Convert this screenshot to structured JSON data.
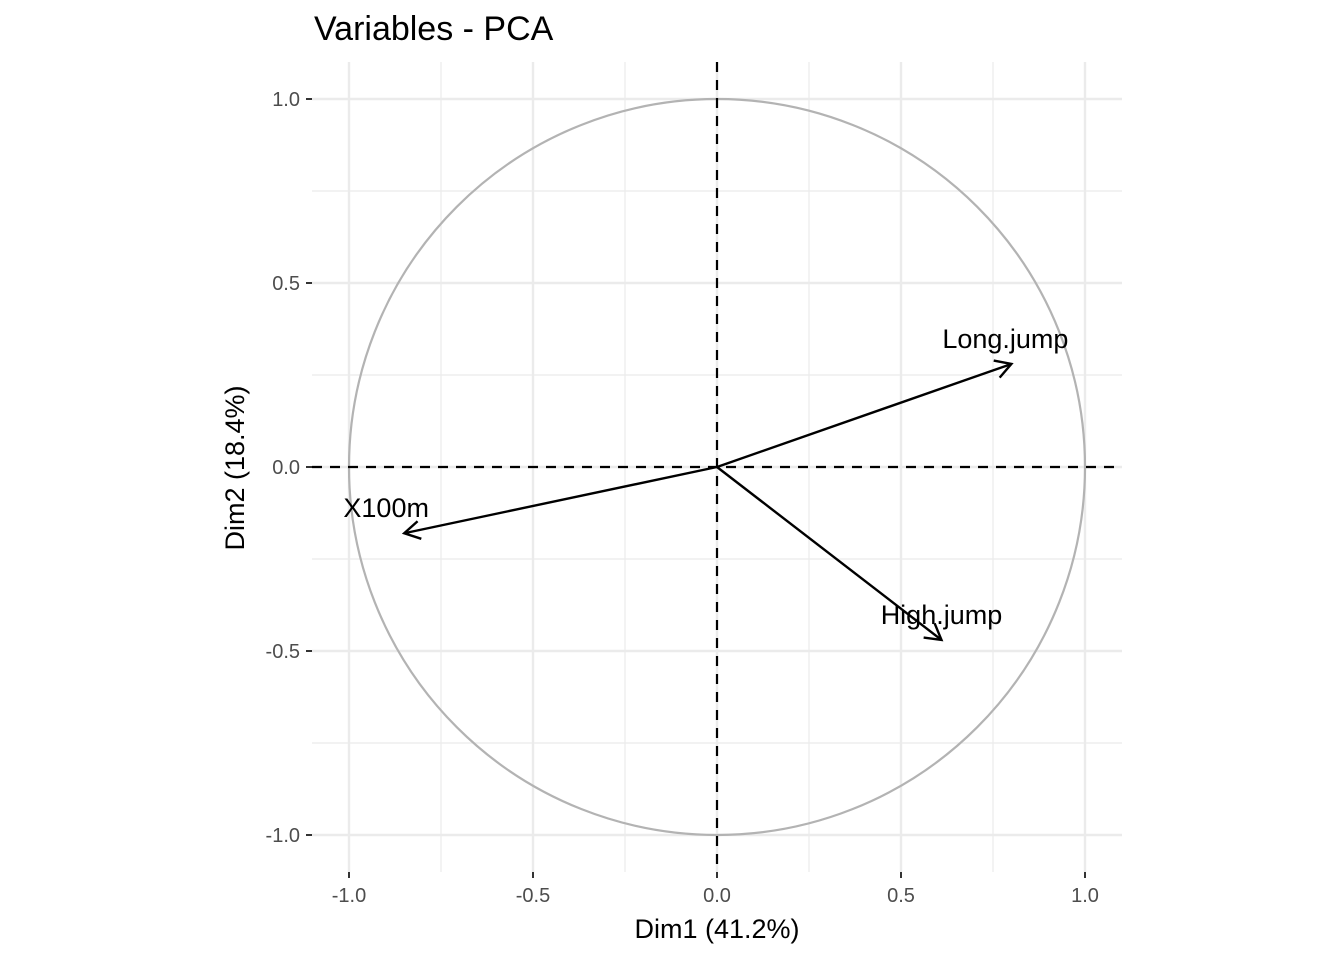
{
  "chart_data": {
    "type": "scatter",
    "subtype": "pca-variable-correlation-circle",
    "title": "Variables - PCA",
    "xlabel": "Dim1 (41.2%)",
    "ylabel": "Dim2 (18.4%)",
    "xlim": [
      -1.0,
      1.0
    ],
    "ylim": [
      -1.0,
      1.0
    ],
    "xticks": [
      -1.0,
      -0.5,
      0.0,
      0.5,
      1.0
    ],
    "yticks": [
      -1.0,
      -0.5,
      0.0,
      0.5,
      1.0
    ],
    "xtick_labels": [
      "-1.0",
      "-0.5",
      "0.0",
      "0.5",
      "1.0"
    ],
    "ytick_labels": [
      "-1.0",
      "-0.5",
      "0.0",
      "0.5",
      "1.0"
    ],
    "grid": true,
    "correlation_circle": true,
    "reference_lines": {
      "x": 0,
      "y": 0,
      "style": "dashed"
    },
    "variables": [
      {
        "label": "Long.jump",
        "x": 0.8,
        "y": 0.28
      },
      {
        "label": "X100m",
        "x": -0.85,
        "y": -0.18
      },
      {
        "label": "High.jump",
        "x": 0.61,
        "y": -0.47
      }
    ],
    "colors": {
      "circle": "#b3b3b3",
      "grid": "#ebebeb",
      "arrow": "#000000",
      "tick_text": "#4d4d4d"
    }
  }
}
